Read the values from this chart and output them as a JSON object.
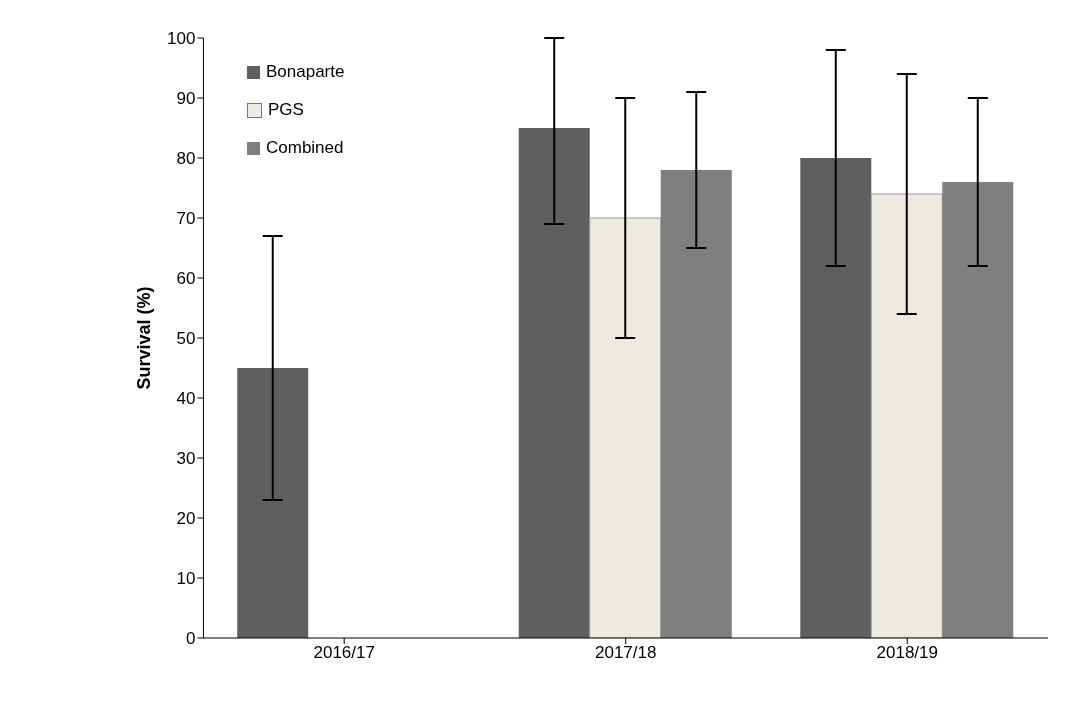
{
  "chart_data": {
    "type": "bar",
    "ylabel": "Survival (%)",
    "categories": [
      "2016/17",
      "2017/18",
      "2018/19"
    ],
    "series": [
      {
        "name": "Bonaparte",
        "color": "#5f5f5f",
        "values": [
          45,
          85,
          80
        ],
        "errors": [
          [
            23,
            67
          ],
          [
            69,
            100
          ],
          [
            62,
            98
          ]
        ]
      },
      {
        "name": "PGS",
        "color": "#edebe0",
        "values": [
          null,
          70,
          74
        ],
        "errors": [
          null,
          [
            50,
            90
          ],
          [
            54,
            94
          ]
        ]
      },
      {
        "name": "Combined",
        "color": "#7f7f7f",
        "values": [
          null,
          78,
          76
        ],
        "errors": [
          null,
          [
            65,
            91
          ],
          [
            62,
            90
          ]
        ]
      }
    ],
    "ylim": [
      0,
      100
    ],
    "yticks": [
      0,
      10,
      20,
      30,
      40,
      50,
      60,
      70,
      80,
      90,
      100
    ],
    "grid": false,
    "legend": "top left"
  }
}
